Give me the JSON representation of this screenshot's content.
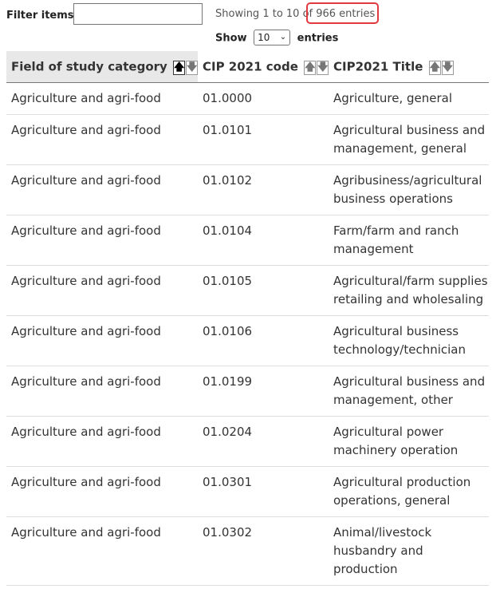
{
  "filter": {
    "label": "Filter items",
    "value": ""
  },
  "pagination": {
    "showing_text": "Showing 1 to 10 of 966 entries",
    "show_label": "Show",
    "page_size": "10",
    "entries_label": "entries"
  },
  "table": {
    "columns": [
      {
        "label": "Field of study category",
        "sort": "asc"
      },
      {
        "label": "CIP 2021 code",
        "sort": "none"
      },
      {
        "label": "CIP2021 Title",
        "sort": "none"
      }
    ],
    "rows": [
      {
        "category": "Agriculture and agri-food",
        "code": "01.0000",
        "title": "Agriculture, general"
      },
      {
        "category": "Agriculture and agri-food",
        "code": "01.0101",
        "title": "Agricultural business and management, general"
      },
      {
        "category": "Agriculture and agri-food",
        "code": "01.0102",
        "title": "Agribusiness/agricultural business operations"
      },
      {
        "category": "Agriculture and agri-food",
        "code": "01.0104",
        "title": "Farm/farm and ranch management"
      },
      {
        "category": "Agriculture and agri-food",
        "code": "01.0105",
        "title": "Agricultural/farm supplies retailing and wholesaling"
      },
      {
        "category": "Agriculture and agri-food",
        "code": "01.0106",
        "title": "Agricultural business technology/technician"
      },
      {
        "category": "Agriculture and agri-food",
        "code": "01.0199",
        "title": "Agricultural business and management, other"
      },
      {
        "category": "Agriculture and agri-food",
        "code": "01.0204",
        "title": "Agricultural power machinery operation"
      },
      {
        "category": "Agriculture and agri-food",
        "code": "01.0301",
        "title": "Agricultural production operations, general"
      },
      {
        "category": "Agriculture and agri-food",
        "code": "01.0302",
        "title": "Animal/livestock husbandry and production"
      }
    ]
  },
  "icons": {
    "sort_up": "arrow-up-icon",
    "sort_down": "arrow-down-icon",
    "select": "chevron-down-icon"
  },
  "colors": {
    "highlight_border": "#e0393e",
    "sorted_header_bg": "#e8e8e8"
  }
}
